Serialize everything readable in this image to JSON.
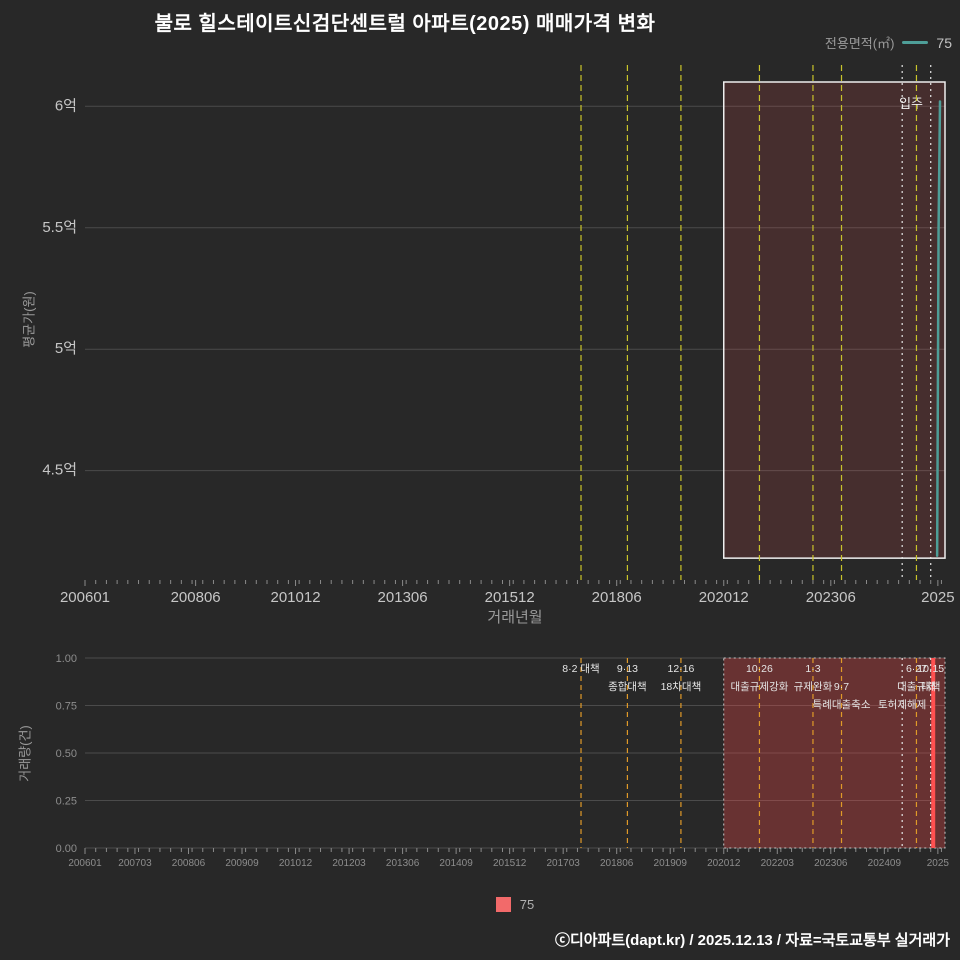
{
  "title": "불로 힐스테이트신검단센트럴 아파트(2025) 매매가격 변화",
  "legend_top": {
    "label": "전용면적(㎡)",
    "series": "75",
    "color": "#4e9e98"
  },
  "legend_bottom": {
    "series": "75",
    "color": "#f26a6a"
  },
  "footer": "ⓒ디아파트(dapt.kr) / 2025.12.13 / 자료=국토교통부 실거래가",
  "theme": {
    "bg": "#282828",
    "grid": "#4b4b4b",
    "axis_text": "#c6c6c6",
    "axis_text_dim": "#8d8d8d",
    "event_top": "#c9c42a",
    "event_bottom": "#e09a28",
    "event_milestone": "#e6e6e6",
    "event_label": "#e5e5e5",
    "region_fill_top": "rgba(255,85,85,0.14)",
    "region_border_top": "#eeeeee",
    "region_fill_bottom": "rgba(255,75,75,0.30)",
    "region_border_bottom": "#c8c8c8",
    "bar_color": "#ff5050",
    "tick_color": "#8a8a8a"
  },
  "events": [
    {
      "ym": "201708",
      "m": 139,
      "style": "policy",
      "labels": [
        {
          "text": "8·2 대책",
          "row": 0
        }
      ]
    },
    {
      "ym": "201809",
      "m": 152,
      "style": "policy",
      "labels": [
        {
          "text": "9·13",
          "row": 0
        },
        {
          "text": "종합대책",
          "row": 1
        }
      ]
    },
    {
      "ym": "201912",
      "m": 167,
      "style": "policy",
      "labels": [
        {
          "text": "12·16",
          "row": 0
        },
        {
          "text": "18차대책",
          "row": 1
        }
      ]
    },
    {
      "ym": "202110",
      "m": 189,
      "style": "policy",
      "labels": [
        {
          "text": "10·26",
          "row": 0
        },
        {
          "text": "대출규제강화",
          "row": 1
        }
      ]
    },
    {
      "ym": "202301",
      "m": 204,
      "style": "policy",
      "labels": [
        {
          "text": "1·3",
          "row": 0
        },
        {
          "text": "규제완화",
          "row": 1
        }
      ]
    },
    {
      "ym": "202309",
      "m": 212,
      "style": "policy",
      "labels": [
        {
          "text": "9·7",
          "row": 1
        },
        {
          "text": "특례대출축소",
          "row": 2
        }
      ]
    },
    {
      "ym": "202502",
      "m": 229,
      "style": "milestone",
      "labels": [
        {
          "text": "토허제해제",
          "row": 2
        }
      ]
    },
    {
      "ym": "202506",
      "m": 233,
      "style": "policy",
      "labels": [
        {
          "text": "6·27",
          "row": 0
        },
        {
          "text": "대출규제",
          "row": 1
        }
      ]
    },
    {
      "ym": "202510",
      "m": 237,
      "style": "milestone",
      "labels": [
        {
          "text": "10·15",
          "row": 0
        },
        {
          "text": "대책",
          "row": 1
        }
      ]
    }
  ],
  "chart_data": [
    {
      "type": "line",
      "title": "매매가격 변화 (평균가)",
      "xlabel": "거래년월",
      "ylabel": "평균가(원)",
      "xlim": [
        0,
        241
      ],
      "ylim": [
        4.05,
        6.17
      ],
      "y_ticks": [
        {
          "v": 6.0,
          "label": "6억"
        },
        {
          "v": 5.5,
          "label": "5.5억"
        },
        {
          "v": 5.0,
          "label": "5억"
        },
        {
          "v": 4.5,
          "label": "4.5억"
        }
      ],
      "x_ticks": [
        {
          "m": 0,
          "label": "200601"
        },
        {
          "m": 31,
          "label": "200806"
        },
        {
          "m": 59,
          "label": "201012"
        },
        {
          "m": 89,
          "label": "201306"
        },
        {
          "m": 119,
          "label": "201512"
        },
        {
          "m": 149,
          "label": "201806"
        },
        {
          "m": 179,
          "label": "202012"
        },
        {
          "m": 209,
          "label": "202306"
        },
        {
          "m": 239,
          "label": "2025"
        }
      ],
      "series": [
        {
          "name": "75",
          "color": "#4e9e98",
          "points": [
            {
              "ym": "202510",
              "m": 238.8,
              "v": 4.15
            },
            {
              "ym": "202511",
              "m": 239.2,
              "v": 5.5
            },
            {
              "ym": "202512",
              "m": 239.6,
              "v": 6.02
            }
          ]
        }
      ],
      "region": {
        "label": "입주",
        "m0": 179,
        "m1": 241,
        "v0": 4.14,
        "v1": 6.1
      }
    },
    {
      "type": "bar",
      "title": "거래량",
      "xlabel": "",
      "ylabel": "거래량(건)",
      "xlim": [
        0,
        241
      ],
      "ylim": [
        0,
        1
      ],
      "y_ticks": [
        {
          "v": 1.0,
          "label": "1.00"
        },
        {
          "v": 0.75,
          "label": "0.75"
        },
        {
          "v": 0.5,
          "label": "0.50"
        },
        {
          "v": 0.25,
          "label": "0.25"
        },
        {
          "v": 0.0,
          "label": "0.00"
        }
      ],
      "x_ticks": [
        {
          "m": 0,
          "label": "200601"
        },
        {
          "m": 14,
          "label": "200703"
        },
        {
          "m": 29,
          "label": "200806"
        },
        {
          "m": 44,
          "label": "200909"
        },
        {
          "m": 59,
          "label": "201012"
        },
        {
          "m": 74,
          "label": "201203"
        },
        {
          "m": 89,
          "label": "201306"
        },
        {
          "m": 104,
          "label": "201409"
        },
        {
          "m": 119,
          "label": "201512"
        },
        {
          "m": 134,
          "label": "201703"
        },
        {
          "m": 149,
          "label": "201806"
        },
        {
          "m": 164,
          "label": "201909"
        },
        {
          "m": 179,
          "label": "202012"
        },
        {
          "m": 194,
          "label": "202203"
        },
        {
          "m": 209,
          "label": "202306"
        },
        {
          "m": 224,
          "label": "202409"
        },
        {
          "m": 239,
          "label": "2025"
        }
      ],
      "bars": [
        {
          "ym": "202510",
          "m": 237.7,
          "v": 1.0
        }
      ],
      "bar_series_name": "75",
      "region": {
        "m0": 179,
        "m1": 241
      }
    }
  ]
}
